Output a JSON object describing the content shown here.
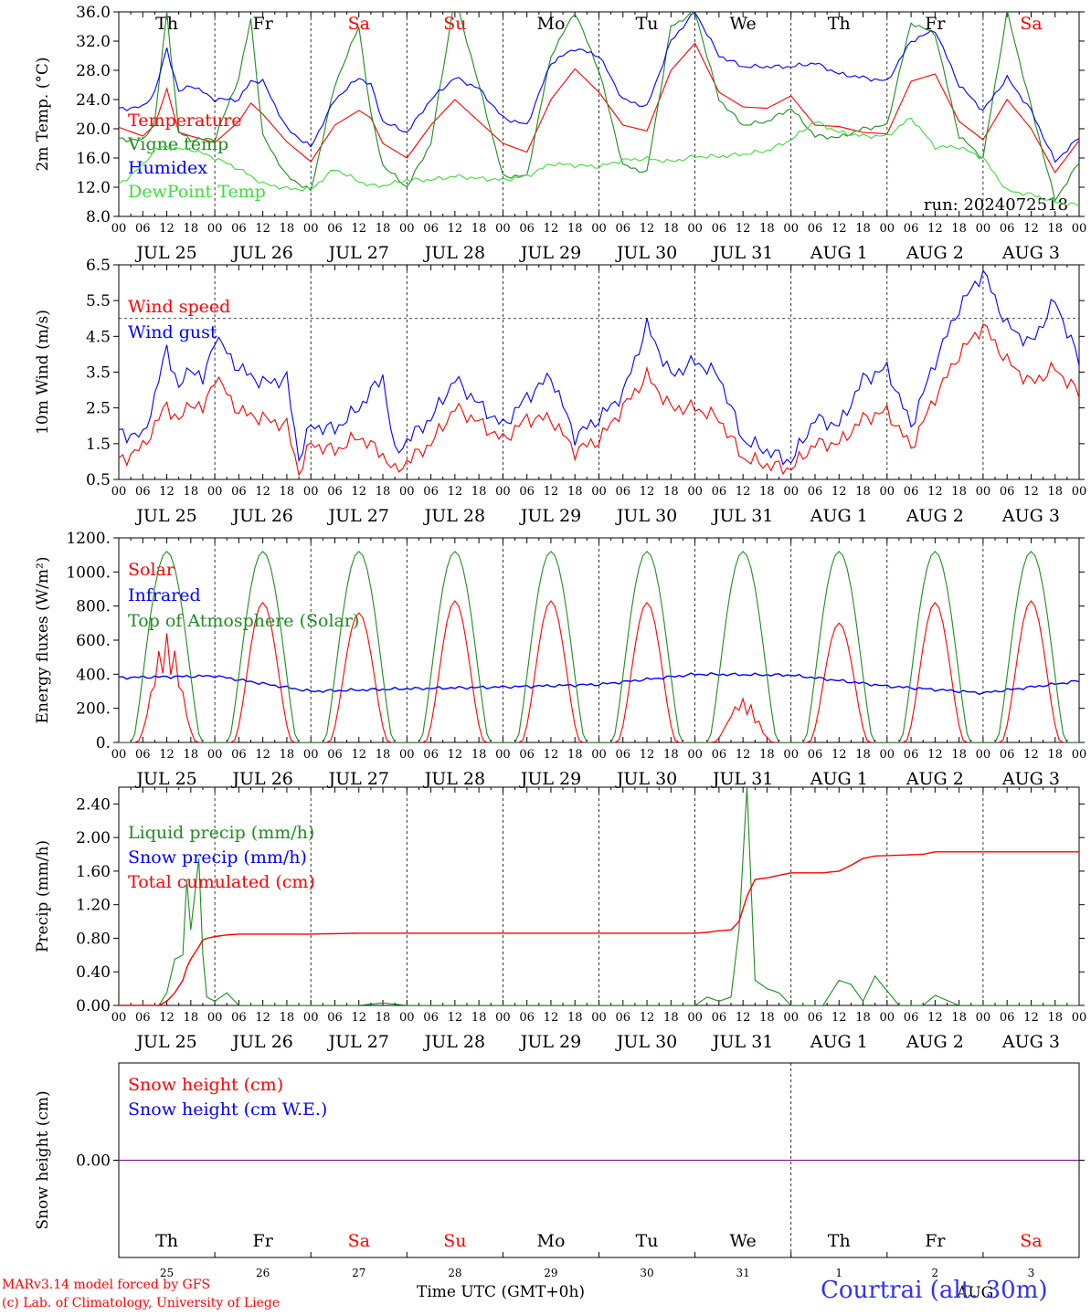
{
  "colors": {
    "red": "#ff0000",
    "blue": "#0000ff",
    "green": "#1f8c1f",
    "lightgreen": "#3ddc3d",
    "purple": "#800080",
    "axis": "#000000"
  },
  "chart_data": [
    {
      "type": "line",
      "id": "temperature",
      "ylabel": "2m Temp. (°C)",
      "ylim": [
        8,
        36
      ],
      "yticks": [
        "8.0",
        "12.0",
        "16.0",
        "20.0",
        "24.0",
        "28.0",
        "32.0",
        "36.0"
      ],
      "ref_line": null,
      "run_label": "run: 2024072518",
      "day_letters": [
        {
          "text": "Th",
          "color": "#000000"
        },
        {
          "text": "Fr",
          "color": "#000000"
        },
        {
          "text": "Sa",
          "color": "#ff0000"
        },
        {
          "text": "Su",
          "color": "#ff0000"
        },
        {
          "text": "Mo",
          "color": "#000000"
        },
        {
          "text": "Tu",
          "color": "#000000"
        },
        {
          "text": "We",
          "color": "#000000"
        },
        {
          "text": "Th",
          "color": "#000000"
        },
        {
          "text": "Fr",
          "color": "#000000"
        },
        {
          "text": "Sa",
          "color": "#ff0000"
        }
      ],
      "x_hours": [
        0,
        6,
        9,
        12,
        15,
        18,
        24,
        30,
        33,
        36,
        42,
        48,
        54,
        60,
        63,
        66,
        72,
        78,
        84,
        90,
        96,
        102,
        108,
        114,
        120,
        126,
        132,
        138,
        144,
        150,
        156,
        162,
        168,
        174,
        180,
        186,
        192,
        198,
        204,
        210,
        216,
        222,
        228,
        234,
        240
      ],
      "series": [
        {
          "name": "Temperature",
          "color": "#ff0000",
          "values": [
            20.2,
            19,
            20.5,
            25.5,
            19.5,
            19,
            18.1,
            21,
            23.5,
            22,
            18.2,
            15.5,
            20.5,
            22.5,
            21.5,
            18,
            16,
            20.5,
            24,
            21,
            18,
            16.8,
            24,
            28.2,
            25,
            20.5,
            19.7,
            28,
            31.7,
            25,
            23,
            22.8,
            24.5,
            20.5,
            20.3,
            19.5,
            19.3,
            26.5,
            27.5,
            21,
            18.5,
            24,
            20,
            14,
            18.4
          ]
        },
        {
          "name": "Vigne temp",
          "color": "#1f8c1f",
          "values": [
            18.6,
            18.4,
            21,
            36,
            19.5,
            18.5,
            18.6,
            27,
            35,
            19,
            13.5,
            11.5,
            26,
            34,
            22,
            15,
            12,
            18,
            38,
            26,
            13.5,
            13.5,
            30,
            36,
            28,
            15,
            14,
            34,
            36,
            24,
            20.5,
            21,
            22.8,
            19,
            18.8,
            20,
            20.5,
            34.5,
            33,
            19,
            16,
            36,
            23,
            10.2,
            15.4
          ]
        },
        {
          "name": "Humidex",
          "color": "#0000ff",
          "values": [
            22.7,
            23,
            25,
            31,
            25,
            26,
            24,
            24,
            26.5,
            26.5,
            20,
            17.5,
            24,
            27,
            26,
            21,
            19.5,
            24,
            27,
            25.5,
            21.5,
            20.5,
            29,
            31,
            30,
            24,
            23,
            32,
            36,
            30,
            28.5,
            28.5,
            28.5,
            29,
            27.5,
            27,
            26.5,
            32,
            33.5,
            26,
            22.5,
            27,
            22.5,
            15.5,
            18.8
          ]
        },
        {
          "name": "DewPoint Temp",
          "color": "#3ddc3d",
          "values": [
            12.3,
            15,
            17.2,
            17.5,
            17.2,
            17.2,
            16,
            14.5,
            13.5,
            12.5,
            11.8,
            11.7,
            14.5,
            12.8,
            12.2,
            12.2,
            13,
            13,
            13.5,
            13.2,
            13,
            13.5,
            15.2,
            15,
            14.8,
            15.7,
            15.9,
            15.5,
            16.2,
            16.2,
            16.5,
            17,
            18.5,
            21,
            19.5,
            19,
            19,
            21.5,
            17.5,
            17.5,
            16,
            11.5,
            11,
            10,
            9.5
          ]
        }
      ]
    },
    {
      "type": "line",
      "id": "wind",
      "ylabel": "10m Wind (m/s)",
      "ylim": [
        0.5,
        6.5
      ],
      "yticks": [
        "0.5",
        "1.5",
        "2.5",
        "3.5",
        "4.5",
        "5.5",
        "6.5"
      ],
      "ref_line": 5.0,
      "x_hours": [
        0,
        6,
        9,
        12,
        15,
        18,
        21,
        24,
        30,
        36,
        42,
        45,
        48,
        54,
        60,
        66,
        69,
        72,
        78,
        84,
        90,
        96,
        102,
        108,
        114,
        120,
        126,
        132,
        138,
        144,
        150,
        156,
        162,
        168,
        174,
        180,
        186,
        192,
        198,
        204,
        210,
        216,
        222,
        228,
        234,
        240
      ],
      "series": [
        {
          "name": "Wind speed",
          "color": "#ff0000",
          "values": [
            1.0,
            1.4,
            2.0,
            2.6,
            2.1,
            2.7,
            2.4,
            3.4,
            2.4,
            2.2,
            2.0,
            0.7,
            1.5,
            1.3,
            1.7,
            1.2,
            0.7,
            1.0,
            1.5,
            2.5,
            2.1,
            1.6,
            2.2,
            2.2,
            1.3,
            1.6,
            2.5,
            3.4,
            2.5,
            2.5,
            2.2,
            1.1,
            0.9,
            0.8,
            1.5,
            1.5,
            2.2,
            2.4,
            1.4,
            2.8,
            4.0,
            4.8,
            3.8,
            3.2,
            3.6,
            2.9
          ]
        },
        {
          "name": "Wind gust",
          "color": "#0000ff",
          "values": [
            1.8,
            1.7,
            2.8,
            4.2,
            3.0,
            3.7,
            3.2,
            4.5,
            3.6,
            3.2,
            3.3,
            1.1,
            2.0,
            1.9,
            2.5,
            3.4,
            1.2,
            1.6,
            2.2,
            3.3,
            2.6,
            2.0,
            2.8,
            3.4,
            1.7,
            2.2,
            2.9,
            4.8,
            3.4,
            3.8,
            3.4,
            1.6,
            1.3,
            1.0,
            2.2,
            2.0,
            3.3,
            3.6,
            2.0,
            3.8,
            5.3,
            6.3,
            4.8,
            4.3,
            5.5,
            3.8
          ]
        }
      ]
    },
    {
      "type": "line",
      "id": "energy",
      "ylabel": "Energy fluxes (W/m²)",
      "ylim": [
        0,
        1200
      ],
      "yticks": [
        "0.",
        "200.",
        "400.",
        "600.",
        "800.",
        "1000.",
        "1200."
      ],
      "ref_line": null,
      "solar_peaks": [
        640,
        820,
        760,
        830,
        830,
        820,
        260,
        700,
        820,
        830
      ],
      "toa_peak": 1120,
      "x_hours": [
        0,
        24,
        48,
        72,
        96,
        120,
        144,
        168,
        192,
        216,
        240
      ],
      "series": [
        {
          "name": "Solar",
          "color": "#ff0000",
          "values": [
            640,
            820,
            760,
            830,
            830,
            820,
            260,
            700,
            820,
            830
          ]
        },
        {
          "name": "Infrared",
          "color": "#0000ff",
          "values": [
            380,
            390,
            300,
            315,
            325,
            340,
            400,
            395,
            330,
            290,
            360
          ]
        },
        {
          "name": "Top of Atmosphere (Solar)",
          "color": "#1f8c1f",
          "values": [
            1120,
            1120,
            1120,
            1120,
            1120,
            1120,
            1120,
            1120,
            1120,
            1120
          ]
        }
      ]
    },
    {
      "type": "line",
      "id": "precip",
      "ylabel": "Precip (mm/h)",
      "ylim": [
        0,
        2.6
      ],
      "yticks": [
        "0.00",
        "0.40",
        "0.80",
        "1.20",
        "1.60",
        "2.00",
        "2.40"
      ],
      "ref_line": null,
      "x_hours": [
        0,
        10,
        12,
        14,
        16,
        17,
        18,
        20,
        21,
        22,
        24,
        27,
        30,
        36,
        48,
        60,
        66,
        72,
        96,
        120,
        144,
        147,
        150,
        153,
        155,
        157,
        159,
        162,
        165,
        168,
        176,
        180,
        183,
        186,
        189,
        195,
        201,
        204,
        210,
        216,
        240
      ],
      "series": [
        {
          "name": "Liquid precip (mm/h)",
          "color": "#1f8c1f",
          "values": [
            0,
            0,
            0.15,
            0.55,
            0.6,
            1.5,
            0.9,
            1.75,
            0.6,
            0.1,
            0.05,
            0.15,
            0,
            0,
            0,
            0,
            0.03,
            0,
            0,
            0,
            0,
            0.1,
            0.05,
            0.1,
            0.9,
            2.6,
            0.3,
            0.2,
            0.15,
            0,
            0,
            0.3,
            0.25,
            0.05,
            0.35,
            0,
            0,
            0.12,
            0,
            0,
            0
          ]
        },
        {
          "name": "Snow precip (mm/h)",
          "color": "#0000ff",
          "values": []
        },
        {
          "name": "Total cumulated (cm)",
          "color": "#ff0000",
          "values": [
            0,
            0,
            0.05,
            0.15,
            0.3,
            0.45,
            0.55,
            0.7,
            0.78,
            0.8,
            0.82,
            0.84,
            0.85,
            0.85,
            0.85,
            0.86,
            0.86,
            0.86,
            0.86,
            0.86,
            0.86,
            0.87,
            0.89,
            0.9,
            1.0,
            1.3,
            1.5,
            1.52,
            1.55,
            1.58,
            1.58,
            1.6,
            1.67,
            1.75,
            1.78,
            1.79,
            1.8,
            1.83,
            1.83,
            1.83,
            1.83
          ]
        }
      ]
    },
    {
      "type": "line",
      "id": "snow",
      "ylabel": "Snow height (cm)",
      "ylim": [
        -1,
        1
      ],
      "yticks": [
        "0.00"
      ],
      "ref_line": null,
      "x_hours": [
        0,
        240
      ],
      "series": [
        {
          "name": "Snow height (cm)",
          "color": "#ff0000",
          "values": [
            0,
            0
          ]
        },
        {
          "name": "Snow height (cm W.E.)",
          "color": "#0000ff",
          "values": [
            0,
            0
          ]
        }
      ]
    }
  ],
  "x_axis": {
    "hour_labels": [
      "00",
      "06",
      "12",
      "18"
    ],
    "date_labels": [
      "JUL 25",
      "JUL 26",
      "JUL 27",
      "JUL 28",
      "JUL 29",
      "JUL 30",
      "JUL 31",
      "AUG  1",
      "AUG  2",
      "AUG  3"
    ],
    "day_numbers": [
      "25",
      "26",
      "27",
      "28",
      "29",
      "30",
      "31",
      "1",
      "2",
      "3"
    ],
    "weekdays": [
      {
        "text": "Th",
        "color": "#000000"
      },
      {
        "text": "Fr",
        "color": "#000000"
      },
      {
        "text": "Sa",
        "color": "#ff0000"
      },
      {
        "text": "Su",
        "color": "#ff0000"
      },
      {
        "text": "Mo",
        "color": "#000000"
      },
      {
        "text": "Tu",
        "color": "#000000"
      },
      {
        "text": "We",
        "color": "#000000"
      },
      {
        "text": "Th",
        "color": "#000000"
      },
      {
        "text": "Fr",
        "color": "#000000"
      },
      {
        "text": "Sa",
        "color": "#ff0000"
      }
    ],
    "bottom_overlay_label": "AUG",
    "title": "Time UTC (GMT+0h)"
  },
  "footer": {
    "credit_line1": "MARv3.14 model forced by GFS",
    "credit_line2": "(c) Lab. of Climatology, University of Liege",
    "location": "Courtrai (alt. 30m)"
  }
}
